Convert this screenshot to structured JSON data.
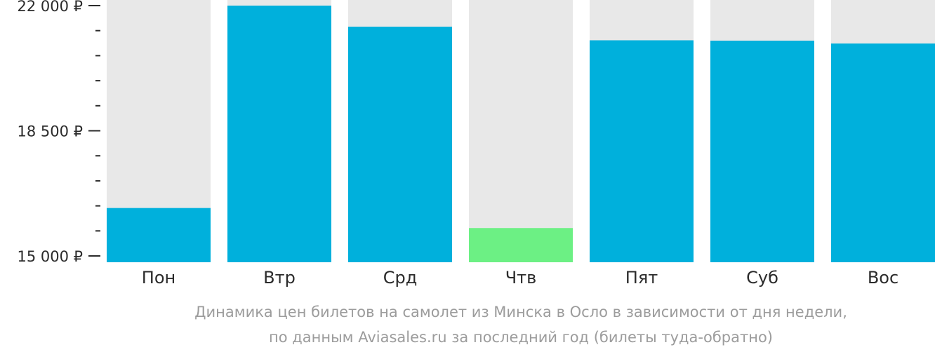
{
  "chart_data": {
    "type": "bar",
    "categories": [
      "Пон",
      "Втр",
      "Срд",
      "Чтв",
      "Пят",
      "Суб",
      "Вос"
    ],
    "values": [
      16340,
      22000,
      21410,
      15780,
      21030,
      21020,
      20940
    ],
    "ylim": [
      15000,
      22000
    ],
    "yticks": [
      {
        "value": 15000,
        "label": "15 000 ₽"
      },
      {
        "value": 18500,
        "label": "18 500 ₽"
      },
      {
        "value": 22000,
        "label": "22 000 ₽"
      }
    ],
    "minor_ticks": [
      15700,
      16400,
      17100,
      17800,
      19200,
      19900,
      20600,
      21300
    ],
    "highlight_index": 3,
    "colors": {
      "bar": "#00b0dc",
      "highlight": "#6cf084",
      "background_column": "#e8e8e8",
      "axis": "#2b2b2b",
      "caption": "#9c9c9c"
    },
    "caption_lines": [
      "Динамика цен билетов на самолет из Минска в Осло в зависимости от дня недели,",
      "по данным Aviasales.ru за последний год (билеты туда-обратно)"
    ]
  }
}
